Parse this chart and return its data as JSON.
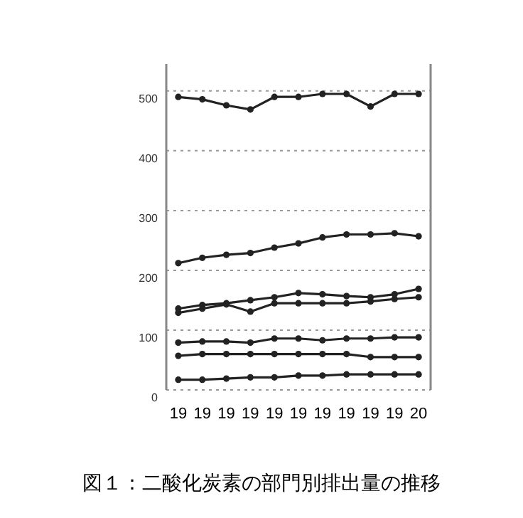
{
  "chart_data": {
    "type": "line",
    "title": "図１：二酸化炭素の部門別排出量の推移",
    "categories": [
      "19",
      "19",
      "19",
      "19",
      "19",
      "19",
      "19",
      "19",
      "19",
      "19",
      "20"
    ],
    "series": [
      {
        "color": "#222222",
        "values": [
          490,
          486,
          476,
          469,
          490,
          490,
          495,
          495,
          474,
          495,
          495
        ]
      },
      {
        "color": "#222222",
        "values": [
          212,
          221,
          226,
          229,
          238,
          245,
          255,
          260,
          260,
          262,
          257
        ]
      },
      {
        "color": "#222222",
        "values": [
          136,
          142,
          145,
          150,
          155,
          162,
          160,
          157,
          155,
          160,
          169
        ]
      },
      {
        "color": "#222222",
        "values": [
          129,
          136,
          143,
          131,
          145,
          145,
          145,
          145,
          148,
          152,
          155
        ]
      },
      {
        "color": "#222222",
        "values": [
          79,
          81,
          81,
          79,
          86,
          86,
          83,
          86,
          86,
          88,
          88
        ]
      },
      {
        "color": "#222222",
        "values": [
          57,
          60,
          60,
          60,
          60,
          60,
          60,
          60,
          55,
          55,
          55
        ]
      },
      {
        "color": "#222222",
        "values": [
          17,
          17,
          19,
          21,
          21,
          24,
          24,
          26,
          26,
          26,
          26
        ]
      }
    ],
    "ylim": [
      0,
      545
    ],
    "yticks": [
      0,
      100,
      200,
      300,
      400,
      500
    ],
    "grid": "y",
    "marker": "circle",
    "line_style": "solid"
  }
}
